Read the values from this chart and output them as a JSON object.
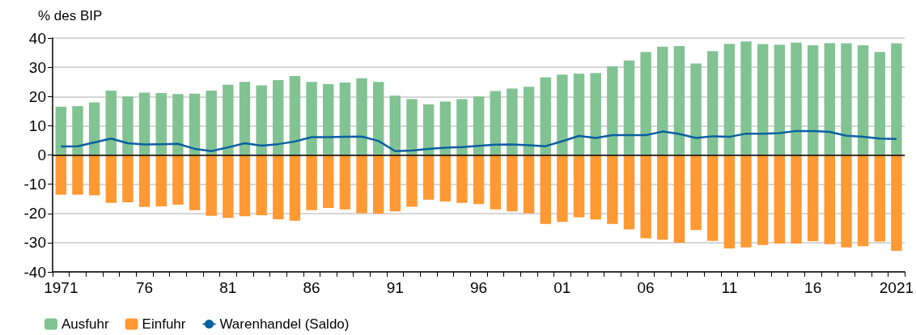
{
  "chart_data": {
    "type": "bar",
    "ylabel": "% des BIP",
    "stacked": true,
    "grid": "y",
    "legend": "bottom left",
    "marker": "none",
    "line_style": "solid",
    "categories": [
      "1971",
      null,
      null,
      null,
      null,
      "76",
      null,
      null,
      null,
      null,
      "81",
      null,
      null,
      null,
      null,
      "86",
      null,
      null,
      null,
      null,
      "91",
      null,
      null,
      null,
      null,
      "96",
      null,
      null,
      null,
      null,
      "01",
      null,
      null,
      null,
      null,
      "06",
      null,
      null,
      null,
      null,
      "11",
      null,
      null,
      null,
      null,
      "16",
      null,
      null,
      null,
      null,
      "2021"
    ],
    "ylim": [
      -40,
      40
    ],
    "yticks": [
      -40,
      -30,
      -20,
      -10,
      0,
      10,
      20,
      30,
      40
    ],
    "series": [
      {
        "name": "Ausfuhr",
        "color": "#81c393",
        "values": [
          16.5,
          16.7,
          18,
          22,
          20,
          21.3,
          21.2,
          20.8,
          21,
          22,
          24,
          25,
          23.8,
          25.6,
          27,
          25,
          24.2,
          24.8,
          26.2,
          25,
          20.3,
          19.1,
          17.3,
          18.3,
          19.1,
          20,
          21.9,
          22.7,
          23.3,
          26.6,
          27.5,
          27.8,
          28,
          30.3,
          32.3,
          35.2,
          37,
          37.2,
          31.3,
          35.5,
          38,
          38.8,
          37.9,
          37.7,
          38.4,
          37.5,
          38.3,
          38.2,
          37.5,
          35.2,
          38.2
        ]
      },
      {
        "name": "Einfuhr",
        "color": "#ff9933",
        "values": [
          -13.6,
          -13.6,
          -13.8,
          -16.4,
          -16.2,
          -17.8,
          -17.6,
          -17,
          -18.9,
          -20.8,
          -21.5,
          -21,
          -20.6,
          -22,
          -22.5,
          -18.9,
          -18.1,
          -18.6,
          -19.9,
          -20.1,
          -19.3,
          -17.7,
          -15.3,
          -15.9,
          -16.4,
          -16.8,
          -18.6,
          -19.3,
          -20,
          -23.6,
          -22.9,
          -21.3,
          -22.1,
          -23.6,
          -25.5,
          -28.5,
          -29,
          -30,
          -25.7,
          -29.4,
          -32,
          -31.6,
          -30.8,
          -30.3,
          -30.3,
          -29.5,
          -30.5,
          -31.6,
          -31.2,
          -29.6,
          -32.8
        ]
      },
      {
        "name": "Warenhandel (Saldo)",
        "type": "line",
        "color": "#0a5fa0",
        "values": [
          2.9,
          3,
          4.3,
          5.6,
          4,
          3.6,
          3.7,
          3.8,
          2.1,
          1.3,
          2.6,
          4,
          3.2,
          3.7,
          4.6,
          6.1,
          6.1,
          6.2,
          6.3,
          4.8,
          1.3,
          1.5,
          2.1,
          2.5,
          2.7,
          3.1,
          3.5,
          3.6,
          3.3,
          3,
          4.7,
          6.5,
          5.8,
          6.8,
          6.8,
          6.8,
          8,
          7.2,
          5.8,
          6.4,
          6.2,
          7.3,
          7.3,
          7.5,
          8.2,
          8.2,
          7.9,
          6.6,
          6.2,
          5.6,
          5.5
        ]
      }
    ]
  }
}
